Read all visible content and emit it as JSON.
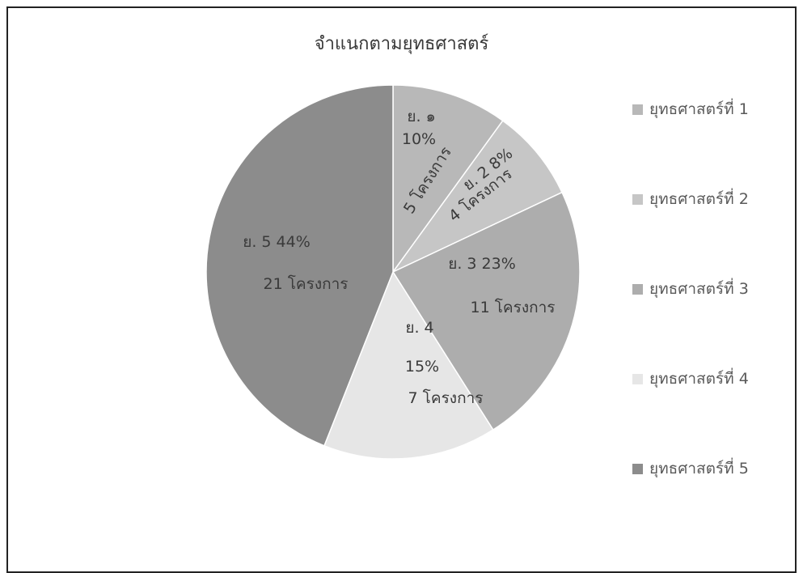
{
  "chart_data": {
    "type": "pie",
    "title": "จำแนกตามยุทธศาสตร์",
    "legend_position": "right",
    "slices": [
      {
        "name": "ยุทธศาสตร์ที่ 1",
        "percent": 10,
        "projects": 5,
        "label_lines": [
          "ย. ๑",
          "10%",
          "5 โครงการ"
        ],
        "color": "#b8b8b8"
      },
      {
        "name": "ยุทธศาสตร์ที่ 2",
        "percent": 8,
        "projects": 4,
        "label_lines": [
          "ย. 2  8%",
          "4 โครงการ"
        ],
        "color": "#c6c6c6"
      },
      {
        "name": "ยุทธศาสตร์ที่ 3",
        "percent": 23,
        "projects": 11,
        "label_lines": [
          "ย. 3   23%",
          "11 โครงการ"
        ],
        "color": "#adadad"
      },
      {
        "name": "ยุทธศาสตร์ที่ 4",
        "percent": 15,
        "projects": 7,
        "label_lines": [
          "ย. 4",
          "15%",
          "7 โครงการ"
        ],
        "color": "#e6e6e6"
      },
      {
        "name": "ยุทธศาสตร์ที่ 5",
        "percent": 44,
        "projects": 21,
        "label_lines": [
          "ย. 5    44%",
          "21 โครงการ"
        ],
        "color": "#8c8c8c"
      }
    ]
  },
  "legend": {
    "items": [
      {
        "label": "ยุทธศาสตร์ที่ 1",
        "color": "#b8b8b8"
      },
      {
        "label": "ยุทธศาสตร์ที่ 2",
        "color": "#c6c6c6"
      },
      {
        "label": "ยุทธศาสตร์ที่ 3",
        "color": "#adadad"
      },
      {
        "label": "ยุทธศาสตร์ที่ 4",
        "color": "#e6e6e6"
      },
      {
        "label": "ยุทธศาสตร์ที่ 5",
        "color": "#8c8c8c"
      }
    ]
  }
}
